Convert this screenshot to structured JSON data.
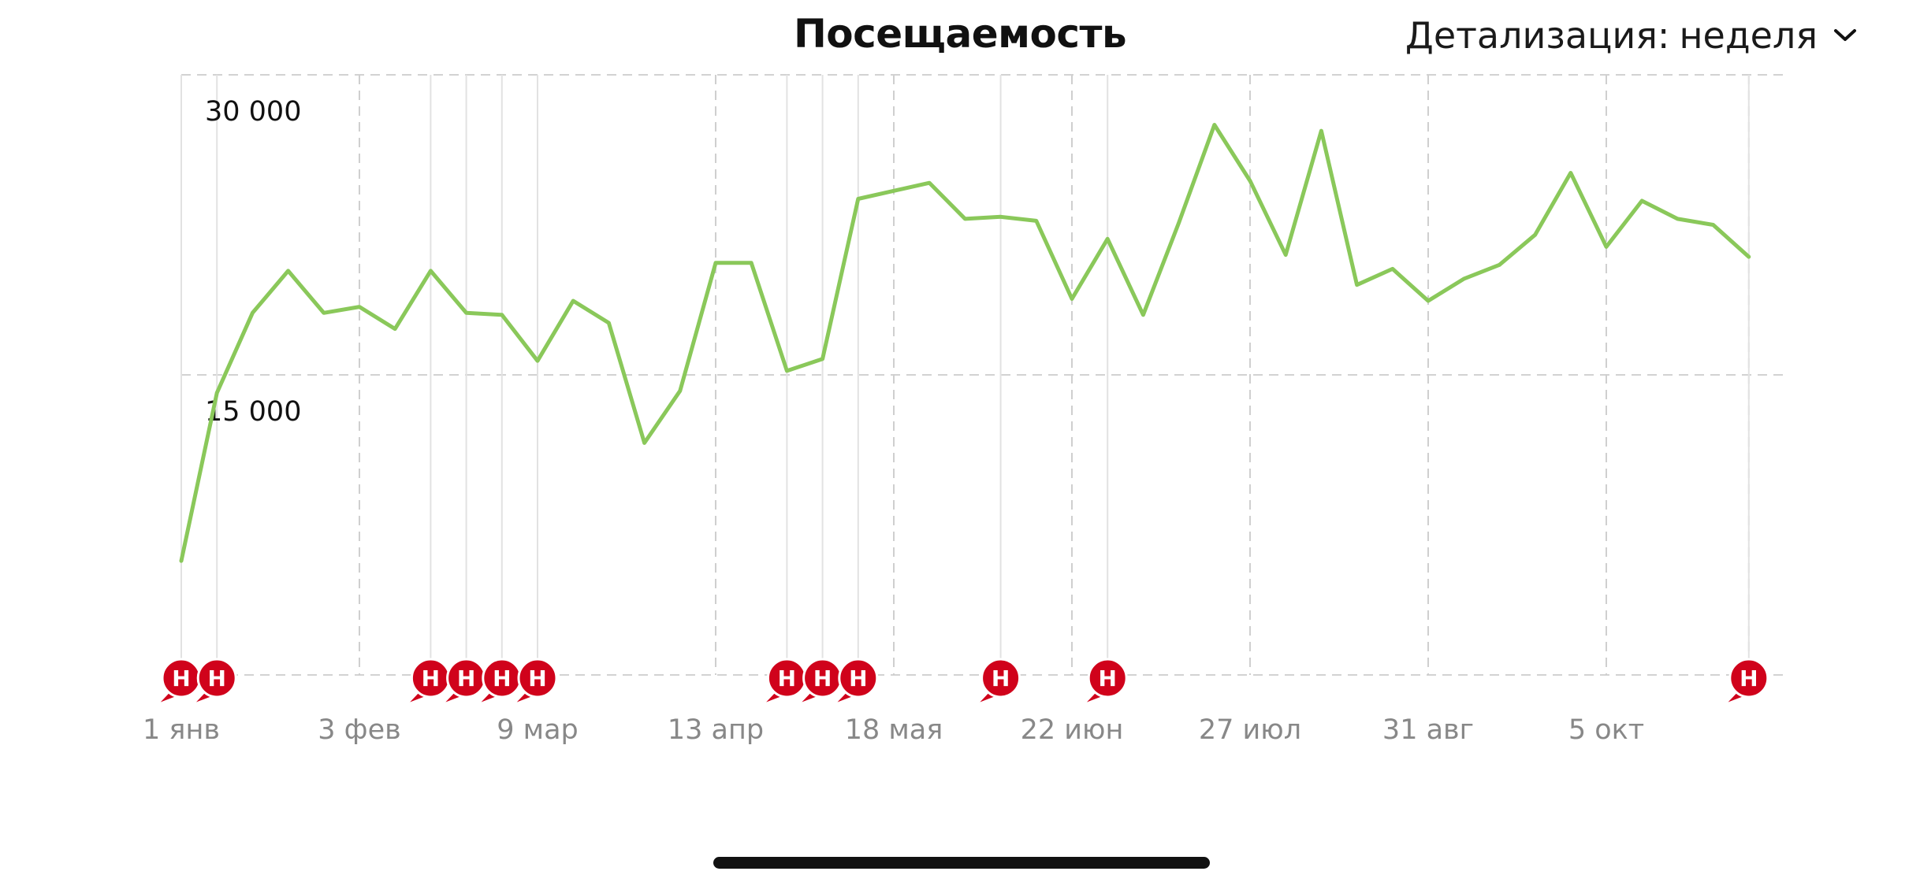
{
  "header": {
    "title": "Посещаемость",
    "detail_label": "Детализация:",
    "detail_value": "неделя",
    "detail_icon": "chevron-down-icon"
  },
  "chart_data": {
    "type": "line",
    "title": "Посещаемость",
    "xlabel": "",
    "ylabel": "",
    "ylim": [
      0,
      30000
    ],
    "y_ticks": [
      {
        "value": 30000,
        "label": "30 000"
      },
      {
        "value": 15000,
        "label": "15 000"
      }
    ],
    "x_ticks": [
      {
        "week": 0,
        "label": "1 янв"
      },
      {
        "week": 5,
        "label": "3 фев"
      },
      {
        "week": 10,
        "label": "9 мар"
      },
      {
        "week": 15,
        "label": "13 апр"
      },
      {
        "week": 20,
        "label": "18 мая"
      },
      {
        "week": 25,
        "label": "22 июн"
      },
      {
        "week": 30,
        "label": "27 июл"
      },
      {
        "week": 35,
        "label": "31 авг"
      },
      {
        "week": 40,
        "label": "5 окт"
      }
    ],
    "grid": true,
    "line_color": "#8ac85a",
    "annotation_color": "#d0021b",
    "series": [
      {
        "values": [
          5700,
          14100,
          18100,
          20200,
          18100,
          18400,
          17300,
          20200,
          18100,
          18000,
          15700,
          18700,
          17600,
          11600,
          14200,
          20600,
          20600,
          15200,
          15800,
          23800,
          24200,
          24600,
          22800,
          22900,
          22700,
          18800,
          21800,
          18000,
          22600,
          27500,
          24700,
          21000,
          27200,
          19500,
          20300,
          18700,
          19800,
          20500,
          22000,
          25100,
          21400,
          23700,
          22800,
          22500,
          20900
        ]
      }
    ],
    "annotations": {
      "letter": "Н",
      "weeks": [
        0,
        1,
        7,
        8,
        9,
        10,
        17,
        18,
        19,
        23,
        26,
        44
      ]
    }
  }
}
